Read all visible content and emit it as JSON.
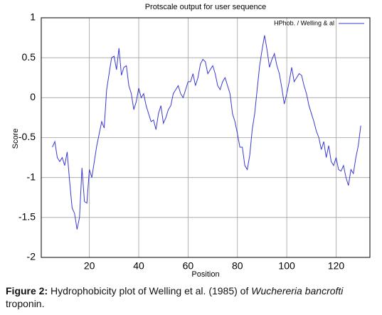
{
  "chart_data": {
    "type": "line",
    "title": "Protscale output for user sequence",
    "xlabel": "Position",
    "ylabel": "Score",
    "x": [
      5,
      6,
      7,
      8,
      9,
      10,
      11,
      12,
      13,
      14,
      15,
      16,
      17,
      18,
      19,
      20,
      21,
      22,
      23,
      24,
      25,
      26,
      27,
      28,
      29,
      30,
      31,
      32,
      33,
      34,
      35,
      36,
      37,
      38,
      39,
      40,
      41,
      42,
      43,
      44,
      45,
      46,
      47,
      48,
      49,
      50,
      51,
      52,
      53,
      54,
      55,
      56,
      57,
      58,
      59,
      60,
      61,
      62,
      63,
      64,
      65,
      66,
      67,
      68,
      69,
      70,
      71,
      72,
      73,
      74,
      75,
      76,
      77,
      78,
      79,
      80,
      81,
      82,
      83,
      84,
      85,
      86,
      87,
      88,
      89,
      90,
      91,
      92,
      93,
      94,
      95,
      96,
      97,
      98,
      99,
      100,
      101,
      102,
      103,
      104,
      105,
      106,
      107,
      108,
      109,
      110,
      111,
      112,
      113,
      114,
      115,
      116,
      117,
      118,
      119,
      120,
      121,
      122,
      123,
      124,
      125,
      126,
      127,
      128,
      129,
      130
    ],
    "series": [
      {
        "name": "HPhob. / Welling & al",
        "color": "#3a3ad0",
        "values": [
          -0.62,
          -0.55,
          -0.75,
          -0.8,
          -0.75,
          -0.85,
          -0.68,
          -1.05,
          -1.38,
          -1.45,
          -1.65,
          -1.5,
          -0.88,
          -1.3,
          -1.32,
          -0.9,
          -1.0,
          -0.8,
          -0.6,
          -0.45,
          -0.3,
          -0.38,
          0.1,
          0.3,
          0.5,
          0.52,
          0.35,
          0.62,
          0.28,
          0.38,
          0.4,
          0.15,
          0.05,
          -0.15,
          -0.05,
          0.12,
          0.0,
          0.05,
          -0.1,
          -0.2,
          -0.3,
          -0.28,
          -0.4,
          -0.2,
          -0.1,
          -0.32,
          -0.25,
          -0.15,
          -0.1,
          0.05,
          0.1,
          0.15,
          0.05,
          0.0,
          0.1,
          0.2,
          0.2,
          0.3,
          0.15,
          0.25,
          0.42,
          0.48,
          0.45,
          0.3,
          0.35,
          0.4,
          0.3,
          0.15,
          0.1,
          0.2,
          0.25,
          0.15,
          0.05,
          -0.2,
          -0.3,
          -0.45,
          -0.62,
          -0.62,
          -0.85,
          -0.9,
          -0.72,
          -0.4,
          -0.2,
          0.1,
          0.4,
          0.6,
          0.78,
          0.6,
          0.38,
          0.48,
          0.55,
          0.4,
          0.3,
          0.12,
          -0.08,
          0.05,
          0.2,
          0.38,
          0.2,
          0.25,
          0.3,
          0.28,
          0.15,
          0.05,
          -0.1,
          -0.2,
          -0.3,
          -0.42,
          -0.5,
          -0.65,
          -0.55,
          -0.75,
          -0.6,
          -0.8,
          -0.85,
          -0.75,
          -0.9,
          -0.92,
          -0.85,
          -1.0,
          -1.1,
          -0.9,
          -0.95,
          -0.75,
          -0.6,
          -0.35
        ]
      }
    ],
    "xlim": [
      0.5,
      133.7
    ],
    "ylim": [
      -2,
      1
    ],
    "xticks": [
      20,
      40,
      60,
      80,
      100,
      120
    ],
    "yticks": [
      -2,
      -1.5,
      -1,
      -0.5,
      0,
      0.5,
      1
    ],
    "grid": true,
    "legend": "upper right"
  },
  "caption": {
    "label": "Figure 2:",
    "text": "Hydrophobicity plot of Welling et al. (1985) of",
    "species": "Wuchereria bancrofti",
    "tail": "troponin."
  }
}
